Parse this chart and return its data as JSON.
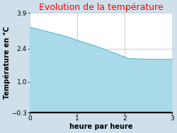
{
  "title": "Evolution de la température",
  "title_color": "#ff0000",
  "xlabel": "heure par heure",
  "ylabel": "Température en °C",
  "xlim": [
    0,
    3
  ],
  "ylim": [
    -0.3,
    3.9
  ],
  "xticks": [
    0,
    1,
    2,
    3
  ],
  "yticks": [
    -0.3,
    1.0,
    2.4,
    3.9
  ],
  "x_data": [
    0,
    0.1,
    0.3,
    0.5,
    0.7,
    0.9,
    1.0,
    1.2,
    1.4,
    1.6,
    1.8,
    1.9,
    2.0,
    2.05,
    2.1,
    2.5,
    2.75,
    3.0
  ],
  "y_data": [
    3.3,
    3.25,
    3.15,
    3.05,
    2.95,
    2.82,
    2.75,
    2.62,
    2.5,
    2.35,
    2.2,
    2.12,
    2.05,
    2.0,
    1.98,
    1.95,
    1.95,
    1.95
  ],
  "fill_color": "#a8daea",
  "line_color": "#5bbcd6",
  "fill_alpha": 1.0,
  "background_color": "#cfe0ea",
  "plot_background_color": "#ffffff",
  "grid_color": "#bbbbbb",
  "baseline": -0.3,
  "title_fontsize": 9,
  "label_fontsize": 7,
  "tick_fontsize": 6.5
}
